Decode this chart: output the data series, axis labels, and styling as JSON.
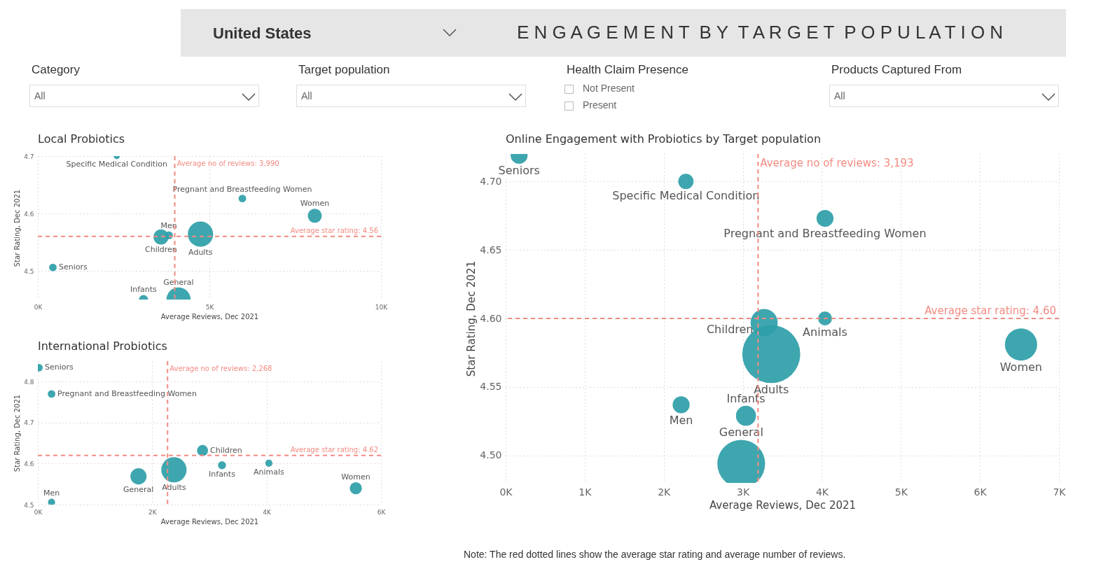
{
  "chart_data": [
    {
      "type": "other",
      "title": "E N G A G E M E N T  B Y  T A R G E T  P O P U L A T I O N",
      "annotations": [
        "United States",
        "Category",
        "All",
        "Target population",
        "All",
        "Health Claim Presence",
        "Not Present",
        "Present",
        "Products Captured From",
        "All"
      ]
    },
    {
      "type": "bubble",
      "title": "Local Probiotics",
      "xlabel": "Average Reviews, Dec 2021",
      "ylabel": "Star Rating, Dec 2021",
      "xlim": [
        0,
        10000
      ],
      "ylim": [
        4.45,
        4.7
      ],
      "xticks": [
        {
          "value": 0,
          "label": "0K"
        },
        {
          "value": 5000,
          "label": "5K"
        },
        {
          "value": 10000,
          "label": "10K"
        }
      ],
      "yticks": [
        4.5,
        4.6,
        4.7
      ],
      "grid": true,
      "marker": "circle",
      "series": [
        {
          "name": "Specific Medical Condition",
          "color": "#2e9ea8",
          "x": [
            2300
          ],
          "values": [
            4.7
          ],
          "sizes": [
            0.06
          ]
        },
        {
          "name": "Pregnant and Breastfeeding Women",
          "color": "#2e9ea8",
          "x": [
            5960
          ],
          "values": [
            4.626
          ],
          "sizes": [
            0.09
          ]
        },
        {
          "name": "Women",
          "color": "#2e9ea8",
          "x": [
            8070
          ],
          "values": [
            4.596
          ],
          "sizes": [
            0.31
          ]
        },
        {
          "name": "Men",
          "color": "#2e9ea8",
          "x": [
            3820
          ],
          "values": [
            4.562
          ],
          "sizes": [
            0.1
          ]
        },
        {
          "name": "Children",
          "color": "#2e9ea8",
          "x": [
            3590
          ],
          "values": [
            4.559
          ],
          "sizes": [
            0.36
          ]
        },
        {
          "name": "Adults",
          "color": "#2e9ea8",
          "x": [
            4740
          ],
          "values": [
            4.564
          ],
          "sizes": [
            1
          ]
        },
        {
          "name": "Seniors",
          "color": "#2e9ea8",
          "x": [
            440
          ],
          "values": [
            4.506
          ],
          "sizes": [
            0.09
          ]
        },
        {
          "name": "Infants",
          "color": "#2e9ea8",
          "x": [
            3080
          ],
          "values": [
            4.45
          ],
          "sizes": [
            0.13
          ]
        },
        {
          "name": "General",
          "color": "#2e9ea8",
          "x": [
            4100
          ],
          "values": [
            4.45
          ],
          "sizes": [
            0.92
          ]
        }
      ],
      "ref_lines": [
        {
          "axis": "x",
          "value": 3990,
          "label": "Average no of reviews: 3,990",
          "color": "#f28b82",
          "line_style": "dashed"
        },
        {
          "axis": "y",
          "value": 4.56,
          "label": "Average star rating: 4.56",
          "color": "#f28b82",
          "line_style": "dashed"
        }
      ]
    },
    {
      "type": "bubble",
      "title": "International Probiotics",
      "xlabel": "Average Reviews, Dec 2021",
      "ylabel": "Star Rating, Dec 2021",
      "xlim": [
        0,
        6000
      ],
      "ylim": [
        4.5,
        4.85
      ],
      "xticks": [
        {
          "value": 0,
          "label": "0K"
        },
        {
          "value": 2000,
          "label": "2K"
        },
        {
          "value": 4000,
          "label": "4K"
        },
        {
          "value": 6000,
          "label": "6K"
        }
      ],
      "yticks": [
        4.5,
        4.6,
        4.7,
        4.8
      ],
      "grid": true,
      "marker": "circle",
      "series": [
        {
          "name": "Seniors",
          "color": "#2e9ea8",
          "x": [
            20
          ],
          "values": [
            4.834
          ],
          "sizes": [
            0.09
          ]
        },
        {
          "name": "Pregnant and Breastfeeding Women",
          "color": "#2e9ea8",
          "x": [
            240
          ],
          "values": [
            4.77
          ],
          "sizes": [
            0.09
          ]
        },
        {
          "name": "Children",
          "color": "#2e9ea8",
          "x": [
            2880
          ],
          "values": [
            4.632
          ],
          "sizes": [
            0.19
          ]
        },
        {
          "name": "Adults",
          "color": "#2e9ea8",
          "x": [
            2380
          ],
          "values": [
            4.585
          ],
          "sizes": [
            1
          ]
        },
        {
          "name": "General",
          "color": "#2e9ea8",
          "x": [
            1760
          ],
          "values": [
            4.569
          ],
          "sizes": [
            0.41
          ]
        },
        {
          "name": "Infants",
          "color": "#2e9ea8",
          "x": [
            3220
          ],
          "values": [
            4.596
          ],
          "sizes": [
            0.1
          ]
        },
        {
          "name": "Animals",
          "color": "#2e9ea8",
          "x": [
            4040
          ],
          "values": [
            4.601
          ],
          "sizes": [
            0.08
          ]
        },
        {
          "name": "Women",
          "color": "#2e9ea8",
          "x": [
            5560
          ],
          "values": [
            4.54
          ],
          "sizes": [
            0.23
          ]
        },
        {
          "name": "Men",
          "color": "#2e9ea8",
          "x": [
            240
          ],
          "values": [
            4.506
          ],
          "sizes": [
            0.08
          ]
        }
      ],
      "ref_lines": [
        {
          "axis": "x",
          "value": 2268,
          "label": "Average no of reviews: 2,268",
          "color": "#f28b82",
          "line_style": "dashed"
        },
        {
          "axis": "y",
          "value": 4.62,
          "label": "Average star rating: 4.62",
          "color": "#f28b82",
          "line_style": "dashed"
        }
      ]
    },
    {
      "type": "bubble",
      "title": "Online Engagement with Probiotics by Target population",
      "xlabel": "Average Reviews, Dec 2021",
      "ylabel": "Star Rating, Dec 2021",
      "xlim": [
        0,
        7000
      ],
      "ylim": [
        4.48,
        4.72
      ],
      "xticks": [
        {
          "value": 0,
          "label": "0K"
        },
        {
          "value": 1000,
          "label": "1K"
        },
        {
          "value": 2000,
          "label": "2K"
        },
        {
          "value": 3000,
          "label": "3K"
        },
        {
          "value": 4000,
          "label": "4K"
        },
        {
          "value": 5000,
          "label": "5K"
        },
        {
          "value": 6000,
          "label": "6K"
        },
        {
          "value": 7000,
          "label": "7K"
        }
      ],
      "yticks": [
        {
          "value": 4.5,
          "label": "4.50"
        },
        {
          "value": 4.55,
          "label": "4.55"
        },
        {
          "value": 4.6,
          "label": "4.60"
        },
        {
          "value": 4.65,
          "label": "4.65"
        },
        {
          "value": 4.7,
          "label": "4.70"
        }
      ],
      "grid": true,
      "marker": "circle",
      "series": [
        {
          "name": "Seniors",
          "color": "#2e9ea8",
          "x": [
            170
          ],
          "values": [
            4.719
          ],
          "sizes": [
            0.086
          ]
        },
        {
          "name": "Specific Medical Condition",
          "color": "#2e9ea8",
          "x": [
            2280
          ],
          "values": [
            4.7
          ],
          "sizes": [
            0.07
          ]
        },
        {
          "name": "Pregnant and Breastfeeding Women",
          "color": "#2e9ea8",
          "x": [
            4040
          ],
          "values": [
            4.673
          ],
          "sizes": [
            0.086
          ]
        },
        {
          "name": "Children",
          "color": "#2e9ea8",
          "x": [
            3270
          ],
          "values": [
            4.597
          ],
          "sizes": [
            0.22
          ]
        },
        {
          "name": "Animals",
          "color": "#2e9ea8",
          "x": [
            4040
          ],
          "values": [
            4.6
          ],
          "sizes": [
            0.058
          ]
        },
        {
          "name": "Women",
          "color": "#2e9ea8",
          "x": [
            6520
          ],
          "values": [
            4.581
          ],
          "sizes": [
            0.31
          ]
        },
        {
          "name": "Adults",
          "color": "#2e9ea8",
          "x": [
            3360
          ],
          "values": [
            4.574
          ],
          "sizes": [
            1
          ]
        },
        {
          "name": "Men",
          "color": "#2e9ea8",
          "x": [
            2220
          ],
          "values": [
            4.537
          ],
          "sizes": [
            0.086
          ]
        },
        {
          "name": "Infants",
          "color": "#2e9ea8",
          "x": [
            3040
          ],
          "values": [
            4.529
          ],
          "sizes": [
            0.12
          ]
        },
        {
          "name": "General",
          "color": "#2e9ea8",
          "x": [
            2980
          ],
          "values": [
            4.494
          ],
          "sizes": [
            0.68
          ]
        }
      ],
      "ref_lines": [
        {
          "axis": "x",
          "value": 3193,
          "label": "Average no of reviews: 3,193",
          "color": "#f28b82",
          "line_style": "dashed"
        },
        {
          "axis": "y",
          "value": 4.6,
          "label": "Average star rating: 4.60",
          "color": "#f28b82",
          "line_style": "dashed"
        }
      ],
      "annotations": [
        "Note: The red dotted lines show the average star rating and average number of reviews."
      ]
    }
  ]
}
